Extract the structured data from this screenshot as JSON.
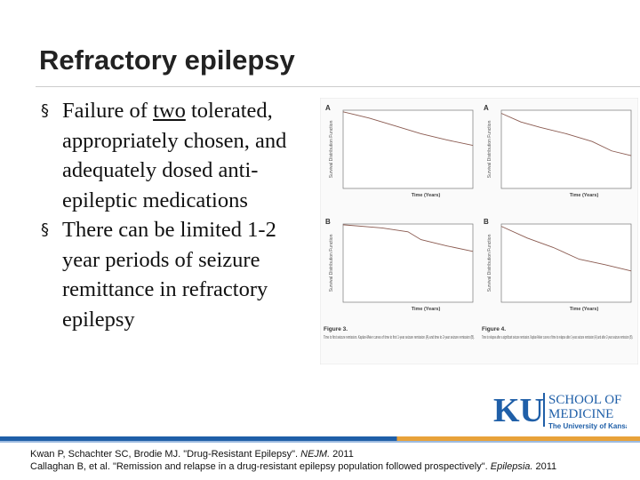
{
  "header": {
    "title": "Refractory epilepsy"
  },
  "bullets": [
    {
      "parts": [
        "Failure of ",
        "two",
        " tolerated, appropriately chosen, and adequately dosed anti-epileptic medications"
      ]
    },
    {
      "parts": [
        "There can be limited 1-2 year periods of seizure remittance in refractory epilepsy"
      ]
    }
  ],
  "figure": {
    "panels": [
      {
        "letter": "A",
        "ylabel": "Survival Distribution Function",
        "xlabel": "Time (Years)"
      },
      {
        "letter": "A",
        "ylabel": "Survival Distribution Function",
        "xlabel": "Time (Years)"
      },
      {
        "letter": "B",
        "ylabel": "Survival Distribution Function",
        "xlabel": "Time (Years)"
      },
      {
        "letter": "B",
        "ylabel": "Survival Distribution Function",
        "xlabel": "Time (Years)"
      }
    ],
    "captions": [
      {
        "label": "Figure 3.",
        "text": "Time to first seizure remission. Kaplan-Meier curves of time to first 1-year seizure remission (A) and time to 2-year seizure remission (B)."
      },
      {
        "label": "Figure 4.",
        "text": "Time to relapse after a significant seizure remission. Kaplan-Meier curves of time to relapse after 1-year seizure remission (A) and after 2-year seizure remission (B)."
      }
    ]
  },
  "logo": {
    "mark": "KU",
    "line1": "SCHOOL OF",
    "line2": "MEDICINE",
    "line3": "The University of Kansas"
  },
  "references": [
    [
      "Kwan P, Schachter SC, Brodie MJ. \"Drug-Resistant Epilepsy\". ",
      "NEJM.",
      " 2011"
    ],
    [
      "Callaghan B, et al. \"Remission and relapse in a drug-resistant epilepsy population followed prospectively\". ",
      "Epilepsia.",
      " 2011"
    ]
  ]
}
